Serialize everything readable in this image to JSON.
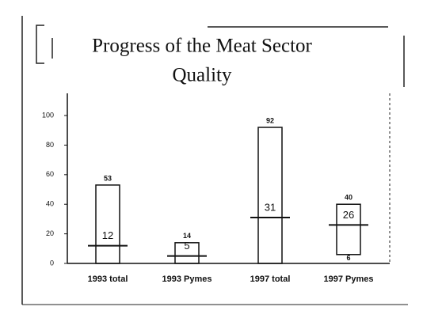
{
  "chart_data": {
    "type": "floating-bar",
    "title_lines": [
      "Progress of the Meat Sector",
      "Quality"
    ],
    "categories": [
      "1993 total",
      "1993 Pymes",
      "1997 total",
      "1997 Pymes"
    ],
    "high": [
      53,
      14,
      92,
      40
    ],
    "low": [
      0,
      0,
      0,
      6
    ],
    "low_value_labels": [
      null,
      null,
      null,
      "6"
    ],
    "mid": [
      12,
      5,
      31,
      26
    ],
    "ylim": [
      0,
      115
    ],
    "yticks": [
      0,
      20,
      40,
      60,
      80,
      100
    ],
    "color": "#111111"
  }
}
